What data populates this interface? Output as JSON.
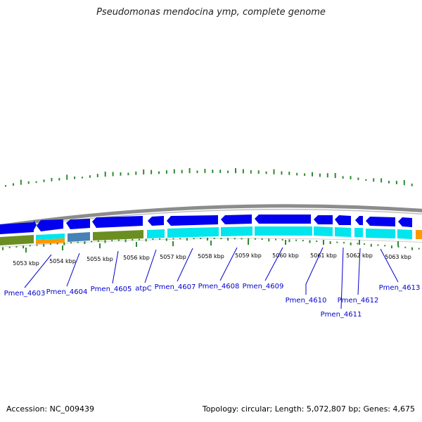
{
  "title": "Pseudomonas mendocina ymp, complete genome",
  "footer": {
    "accession": "Accession: NC_009439",
    "summary": "Topology: circular; Length: 5,072,807 bp; Genes: 4,675"
  },
  "colors": {
    "backbone": "#8c8c8c",
    "cds": "#0000ee",
    "cds_light": "#00e5ee",
    "gc_skew": "#2e8b2e",
    "cog_green": "#6b8e23",
    "cog_orange": "#ff9900",
    "cog_steel": "#4682b4",
    "label": "#0000cc"
  },
  "kbp_ticks": [
    "5053 kbp",
    "5054 kbp",
    "5055 kbp",
    "5056 kbp",
    "5057 kbp",
    "5058 kbp",
    "5059 kbp",
    "5060 kbp",
    "5061 kbp",
    "5062 kbp",
    "5063 kbp"
  ],
  "genes": [
    "Pmen_4603",
    "Pmen_4604",
    "Pmen_4605",
    "atpC",
    "Pmen_4607",
    "Pmen_4608",
    "Pmen_4609",
    "Pmen_4610",
    "Pmen_4611",
    "Pmen_4612",
    "Pmen_4613"
  ]
}
